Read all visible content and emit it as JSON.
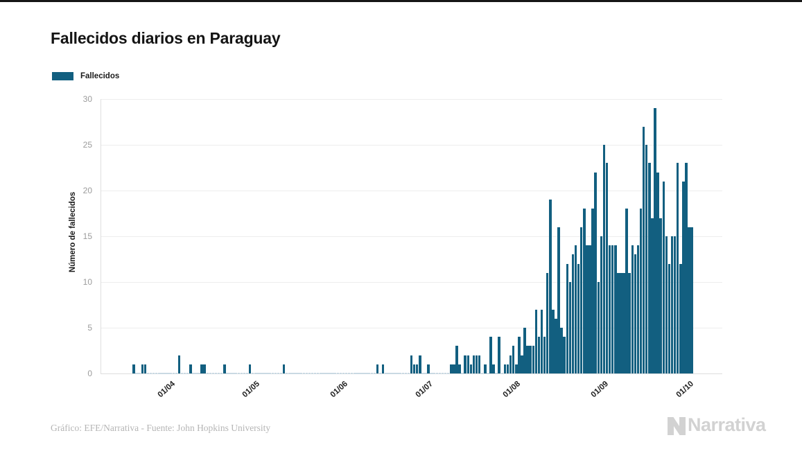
{
  "page": {
    "background": "#ffffff",
    "top_edge_color": "#161616",
    "accent_color": "#125F80"
  },
  "header": {
    "title": "Fallecidos diarios en Paraguay"
  },
  "legend": {
    "label": "Fallecidos",
    "swatch_color": "#125F80"
  },
  "footer": {
    "credit": "Gráfico: EFE/Narrativa - Fuente: John Hopkins University",
    "brand": "Narrativa"
  },
  "chart_data": {
    "type": "bar",
    "title": "Fallecidos diarios en Paraguay",
    "series_name": "Fallecidos",
    "xlabel": "",
    "ylabel": "Número de fallecidos",
    "ylim": [
      0,
      30
    ],
    "yticks": [
      0,
      5,
      10,
      15,
      20,
      25,
      30
    ],
    "grid": "horizontal",
    "legend_position": "top-left",
    "bar_color": "#125F80",
    "zero_stub_color": "#C9D9E3",
    "x_unit": "day",
    "x_start_date": "2020-03-23",
    "x_end_date": "2020-10-06",
    "xticks": [
      {
        "label": "01/04",
        "day_index": 9
      },
      {
        "label": "01/05",
        "day_index": 39
      },
      {
        "label": "01/06",
        "day_index": 70
      },
      {
        "label": "01/07",
        "day_index": 100
      },
      {
        "label": "01/08",
        "day_index": 131
      },
      {
        "label": "01/09",
        "day_index": 162
      },
      {
        "label": "01/10",
        "day_index": 192
      }
    ],
    "values": [
      1,
      0,
      0,
      1,
      1,
      0,
      0,
      0,
      0,
      0,
      0,
      0,
      0,
      0,
      0,
      0,
      2,
      0,
      0,
      0,
      1,
      0,
      0,
      0,
      1,
      1,
      0,
      0,
      0,
      0,
      0,
      0,
      1,
      0,
      0,
      0,
      0,
      0,
      0,
      0,
      0,
      1,
      0,
      0,
      0,
      0,
      0,
      0,
      0,
      0,
      0,
      0,
      0,
      1,
      0,
      0,
      0,
      0,
      0,
      0,
      0,
      0,
      0,
      0,
      0,
      0,
      0,
      0,
      0,
      0,
      0,
      0,
      0,
      0,
      0,
      0,
      0,
      0,
      0,
      0,
      0,
      0,
      0,
      0,
      0,
      0,
      1,
      0,
      1,
      0,
      0,
      0,
      0,
      0,
      0,
      0,
      0,
      0,
      2,
      1,
      1,
      2,
      0,
      0,
      1,
      0,
      0,
      0,
      0,
      0,
      0,
      0,
      1,
      1,
      3,
      1,
      0,
      2,
      2,
      1,
      2,
      2,
      2,
      0,
      1,
      0,
      4,
      1,
      0,
      4,
      0,
      1,
      1,
      2,
      3,
      1,
      4,
      2,
      5,
      3,
      3,
      3,
      7,
      4,
      7,
      4,
      11,
      19,
      7,
      6,
      16,
      5,
      4,
      12,
      10,
      13,
      14,
      12,
      16,
      18,
      14,
      14,
      18,
      22,
      10,
      15,
      25,
      23,
      14,
      14,
      14,
      11,
      11,
      11,
      18,
      11,
      14,
      13,
      14,
      18,
      27,
      25,
      23,
      17,
      29,
      22,
      17,
      21,
      15,
      12,
      15,
      15,
      23,
      12,
      21,
      23,
      16,
      16
    ]
  }
}
